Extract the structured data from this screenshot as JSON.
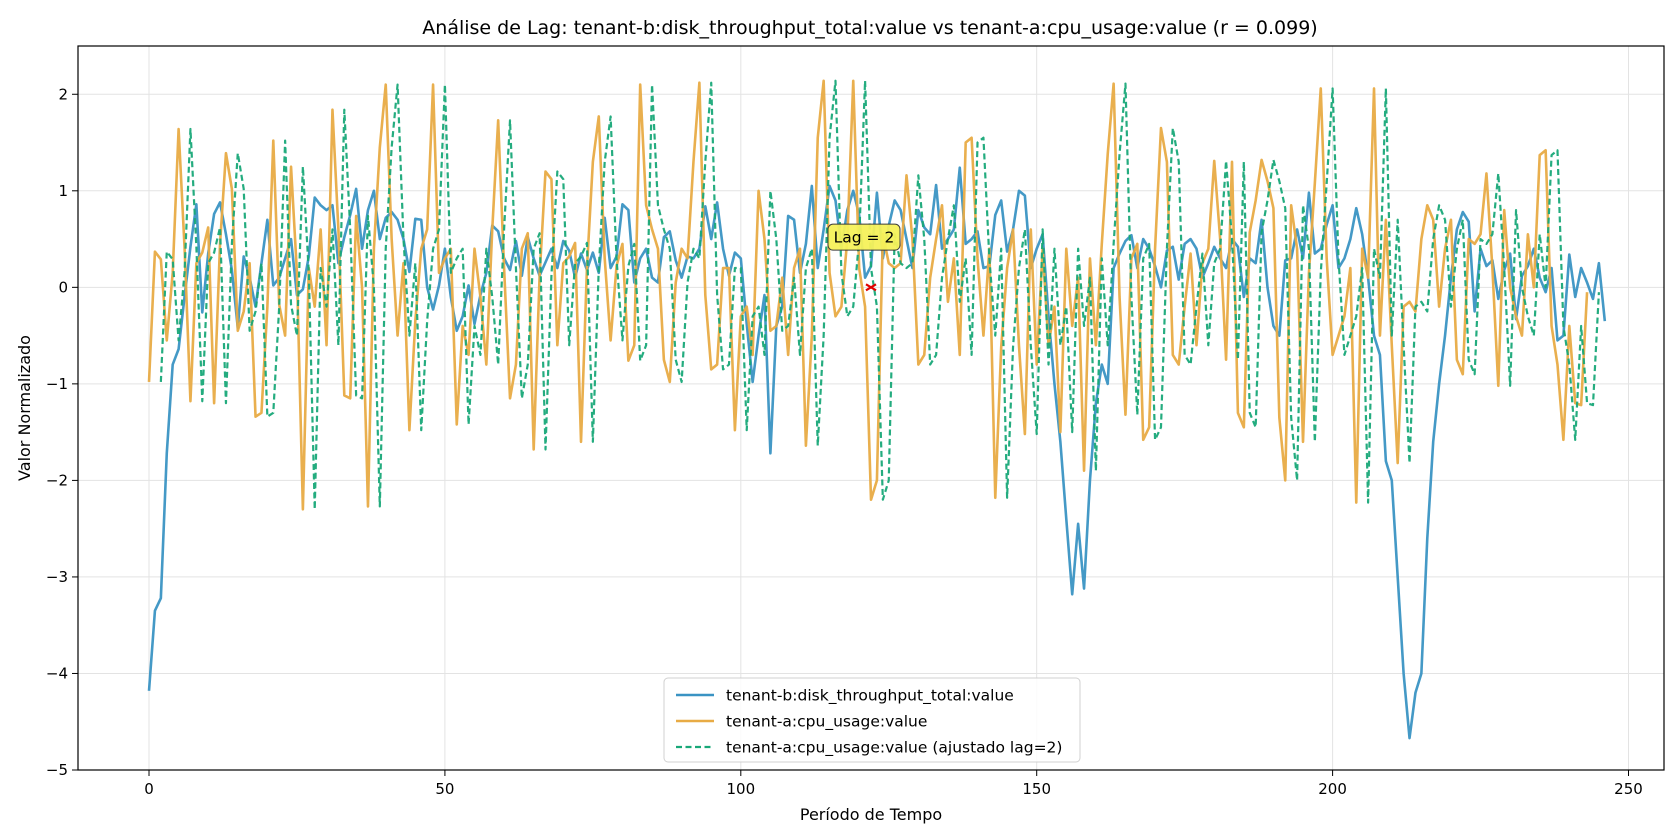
{
  "chart_data": {
    "type": "line",
    "title": "Análise de Lag: tenant-b:disk_throughput_total:value vs tenant-a:cpu_usage:value (r = 0.099)",
    "xlabel": "Período de Tempo",
    "ylabel": "Valor Normalizado",
    "xlim": [
      -12,
      256
    ],
    "ylim": [
      -5,
      2.5
    ],
    "xticks": [
      0,
      50,
      100,
      150,
      200,
      250
    ],
    "yticks": [
      -5,
      -4,
      -3,
      -2,
      -1,
      0,
      1,
      2
    ],
    "grid": true,
    "legend_position": "bottom-center",
    "lag": 2,
    "annotation": {
      "text": "Lag = 2",
      "x": 122,
      "y": 0.52
    },
    "marker": {
      "x": 122,
      "y": 0.0,
      "symbol": "x",
      "color": "#e00000"
    },
    "series": [
      {
        "name": "tenant-b:disk_throughput_total:value",
        "color": "#3a93c3",
        "style": "solid",
        "x_start": 0,
        "values": [
          -4.18,
          -3.35,
          -3.22,
          -1.72,
          -0.8,
          -0.64,
          -0.1,
          0.42,
          0.86,
          -0.26,
          0.35,
          0.76,
          0.88,
          0.55,
          0.18,
          -0.42,
          0.32,
          0.1,
          -0.2,
          0.25,
          0.7,
          0.02,
          0.1,
          0.3,
          0.5,
          -0.08,
          -0.02,
          0.32,
          0.93,
          0.85,
          0.8,
          0.85,
          0.25,
          0.52,
          0.75,
          1.02,
          0.4,
          0.8,
          1.0,
          0.5,
          0.72,
          0.78,
          0.7,
          0.5,
          0.16,
          0.71,
          0.7,
          0.0,
          -0.23,
          0.02,
          0.4,
          -0.1,
          -0.45,
          -0.3,
          0.02,
          -0.38,
          -0.08,
          0.15,
          0.64,
          0.58,
          0.3,
          0.18,
          0.48,
          0.12,
          0.52,
          0.3,
          0.12,
          0.26,
          0.4,
          0.2,
          0.48,
          0.38,
          0.1,
          0.35,
          0.18,
          0.36,
          0.15,
          0.72,
          0.2,
          0.32,
          0.86,
          0.8,
          0.05,
          0.3,
          0.4,
          0.1,
          0.05,
          0.52,
          0.58,
          0.28,
          0.1,
          0.32,
          0.3,
          0.4,
          0.84,
          0.5,
          0.88,
          0.4,
          0.12,
          0.36,
          0.3,
          -0.38,
          -0.98,
          -0.5,
          -0.08,
          -1.72,
          -0.4,
          -0.2,
          0.74,
          0.7,
          0.15,
          0.45,
          1.05,
          0.2,
          0.6,
          1.05,
          0.9,
          0.4,
          0.8,
          1.0,
          0.75,
          0.1,
          0.22,
          0.98,
          0.3,
          0.64,
          0.9,
          0.8,
          0.5,
          0.2,
          0.8,
          0.62,
          0.55,
          1.06,
          0.4,
          0.5,
          0.6,
          1.24,
          0.45,
          0.5,
          0.58,
          0.2,
          0.22,
          0.75,
          0.9,
          0.37,
          0.6,
          1.0,
          0.95,
          0.2,
          0.4,
          0.55,
          -0.3,
          -1.0,
          -1.6,
          -2.4,
          -3.18,
          -2.45,
          -3.12,
          -2.0,
          -1.2,
          -0.8,
          -1.0,
          0.2,
          0.35,
          0.48,
          0.54,
          0.2,
          0.5,
          0.4,
          0.22,
          0.0,
          0.38,
          0.42,
          0.08,
          0.45,
          0.5,
          0.4,
          0.1,
          0.25,
          0.42,
          0.3,
          0.2,
          0.5,
          0.42,
          -0.1,
          0.3,
          0.25,
          0.7,
          0.0,
          -0.4,
          -0.5,
          0.28,
          0.3,
          0.6,
          0.3,
          0.98,
          0.35,
          0.4,
          0.65,
          0.85,
          0.2,
          0.3,
          0.5,
          0.82,
          0.55,
          0.1,
          -0.5,
          -0.7,
          -1.8,
          -2.0,
          -3.0,
          -4.0,
          -4.67,
          -4.2,
          -4.0,
          -2.6,
          -1.6,
          -1.0,
          -0.5,
          0.1,
          0.6,
          0.78,
          0.68,
          -0.25,
          0.4,
          0.22,
          0.28,
          -0.12,
          0.18,
          0.35,
          -0.33,
          0.12,
          0.22,
          0.4,
          0.1,
          -0.05,
          0.2,
          -0.55,
          -0.5,
          0.34,
          -0.1,
          0.2,
          0.05,
          -0.12,
          0.25,
          -0.35
        ]
      },
      {
        "name": "tenant-a:cpu_usage:value",
        "color": "#e8ab45",
        "style": "solid",
        "x_start": 0,
        "values": [
          -0.98,
          0.37,
          0.29,
          -0.55,
          0.15,
          1.64,
          0.42,
          -1.18,
          0.25,
          0.36,
          0.62,
          -1.2,
          0.45,
          1.39,
          1.02,
          -0.45,
          -0.25,
          0.25,
          -1.34,
          -1.3,
          -0.2,
          1.52,
          -0.18,
          -0.5,
          1.25,
          0.15,
          -2.3,
          0.2,
          -0.2,
          0.6,
          -0.6,
          1.84,
          0.6,
          -1.12,
          -1.15,
          0.74,
          0.0,
          -2.27,
          0.4,
          1.45,
          2.1,
          0.5,
          -0.5,
          0.25,
          -1.48,
          -0.35,
          0.4,
          0.6,
          2.1,
          0.15,
          0.3,
          0.4,
          -1.42,
          -0.4,
          -0.7,
          0.4,
          -0.1,
          -0.8,
          0.6,
          1.73,
          0.2,
          -1.15,
          -0.8,
          0.4,
          0.56,
          -1.68,
          0.12,
          1.2,
          1.12,
          -0.6,
          0.25,
          0.32,
          0.46,
          -1.6,
          0.2,
          1.3,
          1.77,
          0.3,
          -0.55,
          0.22,
          0.45,
          -0.76,
          -0.6,
          2.1,
          0.85,
          0.6,
          0.4,
          -0.75,
          -0.98,
          0.05,
          0.4,
          0.3,
          1.3,
          2.12,
          -0.08,
          -0.85,
          -0.8,
          0.2,
          0.2,
          -1.48,
          -0.3,
          -0.2,
          -0.7,
          1.0,
          0.5,
          -0.45,
          -0.4,
          0.1,
          -0.7,
          0.2,
          0.4,
          -1.64,
          -0.5,
          1.55,
          2.14,
          0.15,
          -0.3,
          -0.2,
          0.5,
          2.14,
          0.2,
          -0.2,
          -2.2,
          -2.0,
          0.55,
          0.25,
          0.2,
          0.25,
          1.16,
          0.5,
          -0.8,
          -0.7,
          0.1,
          0.5,
          0.85,
          -0.15,
          0.3,
          -0.7,
          1.5,
          1.55,
          0.3,
          -0.5,
          0.4,
          -2.18,
          -0.62,
          0.2,
          0.6,
          -0.6,
          -1.52,
          0.6,
          -0.8,
          0.4,
          -0.6,
          -0.2,
          -1.5,
          0.4,
          -0.4,
          0.1,
          -1.9,
          0.3,
          -0.6,
          0.45,
          1.38,
          2.11,
          -0.1,
          -1.32,
          0.3,
          0.45,
          -1.58,
          -1.45,
          0.4,
          1.65,
          1.3,
          -0.7,
          -0.8,
          -0.2,
          0.35,
          -0.6,
          0.25,
          0.4,
          1.31,
          0.5,
          -0.75,
          1.3,
          -1.3,
          -1.45,
          0.57,
          0.9,
          1.32,
          1.1,
          0.82,
          -1.35,
          -2.0,
          0.85,
          0.4,
          -1.6,
          0.15,
          1.08,
          2.06,
          0.3,
          -0.7,
          -0.5,
          -0.3,
          0.2,
          -2.23,
          0.4,
          0.1,
          2.06,
          -0.5,
          0.7,
          -0.6,
          -1.82,
          -0.2,
          -0.15,
          -0.25,
          0.5,
          0.85,
          0.7,
          -0.2,
          0.4,
          0.7,
          -0.75,
          -0.9,
          0.5,
          0.45,
          0.55,
          1.18,
          0.2,
          -1.02,
          0.8,
          0.0,
          -0.3,
          -0.5,
          0.55,
          0.0,
          1.37,
          1.42,
          -0.4,
          -0.8,
          -1.58,
          -0.4,
          -1.2,
          -1.22,
          -0.05
        ]
      },
      {
        "name": "tenant-a:cpu_usage:value (ajustado lag=2)",
        "color": "#18a878",
        "style": "dashed",
        "x_start": 2,
        "values": [
          -0.98,
          0.37,
          0.29,
          -0.55,
          0.15,
          1.64,
          0.42,
          -1.18,
          0.25,
          0.36,
          0.62,
          -1.2,
          0.45,
          1.39,
          1.02,
          -0.45,
          -0.25,
          0.25,
          -1.34,
          -1.3,
          -0.2,
          1.52,
          -0.18,
          -0.5,
          1.25,
          0.15,
          -2.3,
          0.2,
          -0.2,
          0.6,
          -0.6,
          1.84,
          0.6,
          -1.12,
          -1.15,
          0.74,
          0.0,
          -2.27,
          0.4,
          1.45,
          2.1,
          0.5,
          -0.5,
          0.25,
          -1.48,
          -0.35,
          0.4,
          0.6,
          2.1,
          0.15,
          0.3,
          0.4,
          -1.42,
          -0.4,
          -0.7,
          0.4,
          -0.1,
          -0.8,
          0.6,
          1.73,
          0.2,
          -1.15,
          -0.8,
          0.4,
          0.56,
          -1.68,
          0.12,
          1.2,
          1.12,
          -0.6,
          0.25,
          0.32,
          0.46,
          -1.6,
          0.2,
          1.3,
          1.77,
          0.3,
          -0.55,
          0.22,
          0.45,
          -0.76,
          -0.6,
          2.1,
          0.85,
          0.6,
          0.4,
          -0.75,
          -0.98,
          0.05,
          0.4,
          0.3,
          1.3,
          2.12,
          -0.08,
          -0.85,
          -0.8,
          0.2,
          0.2,
          -1.48,
          -0.3,
          -0.2,
          -0.7,
          1.0,
          0.5,
          -0.45,
          -0.4,
          0.1,
          -0.7,
          0.2,
          0.4,
          -1.64,
          -0.5,
          1.55,
          2.14,
          0.15,
          -0.3,
          -0.2,
          0.5,
          2.14,
          0.2,
          -0.2,
          -2.2,
          -2.0,
          0.55,
          0.25,
          0.2,
          0.25,
          1.16,
          0.5,
          -0.8,
          -0.7,
          0.1,
          0.5,
          0.85,
          -0.15,
          0.3,
          -0.7,
          1.5,
          1.55,
          0.3,
          -0.5,
          0.4,
          -2.18,
          -0.62,
          0.2,
          0.6,
          -0.6,
          -1.52,
          0.6,
          -0.8,
          0.4,
          -0.6,
          -0.2,
          -1.5,
          0.4,
          -0.4,
          0.1,
          -1.9,
          0.3,
          -0.6,
          0.45,
          1.38,
          2.11,
          -0.1,
          -1.32,
          0.3,
          0.45,
          -1.58,
          -1.45,
          0.4,
          1.65,
          1.3,
          -0.7,
          -0.8,
          -0.2,
          0.35,
          -0.6,
          0.25,
          0.4,
          1.31,
          0.5,
          -0.75,
          1.3,
          -1.3,
          -1.45,
          0.57,
          0.9,
          1.32,
          1.1,
          0.82,
          -1.35,
          -2.0,
          0.85,
          0.4,
          -1.6,
          0.15,
          1.08,
          2.06,
          0.3,
          -0.7,
          -0.5,
          -0.3,
          0.2,
          -2.23,
          0.4,
          0.1,
          2.06,
          -0.5,
          0.7,
          -0.6,
          -1.82,
          -0.2,
          -0.15,
          -0.25,
          0.5,
          0.85,
          0.7,
          -0.2,
          0.4,
          0.7,
          -0.75,
          -0.9,
          0.5,
          0.45,
          0.55,
          1.18,
          0.2,
          -1.02,
          0.8,
          0.0,
          -0.3,
          -0.5,
          0.55,
          0.0,
          1.37,
          1.42,
          -0.4,
          -0.8,
          -1.58,
          -0.4,
          -1.2,
          -1.22,
          -0.05
        ]
      }
    ]
  }
}
